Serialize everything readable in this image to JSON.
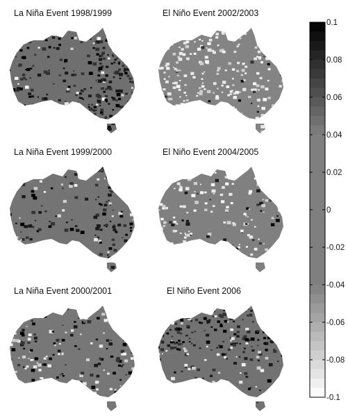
{
  "panels": [
    {
      "title": "La Niña Event 1998/1999",
      "tone": "very-dark"
    },
    {
      "title": "El Niño Event 2002/2003",
      "tone": "light"
    },
    {
      "title": "La Niña Event 1999/2000",
      "tone": "dark"
    },
    {
      "title": "El Niño Event 2004/2005",
      "tone": "light-mixed"
    },
    {
      "title": "La Niña Event 2000/2001",
      "tone": "dark-mixed"
    },
    {
      "title": "El Niño Event 2006",
      "tone": "dark-north"
    }
  ],
  "colorbar": {
    "min": -0.1,
    "max": 0.1,
    "tick_labels": [
      "0.1",
      "0.08",
      "0.06",
      "0.04",
      "0.02",
      "0",
      "-0.02",
      "-0.04",
      "-0.06",
      "-0.08",
      "-0.1"
    ],
    "tick_values": [
      0.1,
      0.08,
      0.06,
      0.04,
      0.02,
      0,
      -0.02,
      -0.04,
      -0.06,
      -0.08,
      -0.1
    ],
    "color_high": "#000000",
    "color_mid": "#7f7f7f",
    "color_low": "#ffffff"
  }
}
